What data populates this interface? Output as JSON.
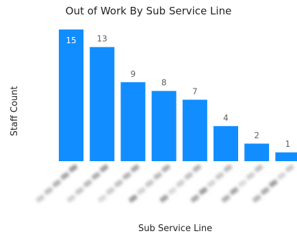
{
  "chart_data": {
    "type": "bar",
    "title": "Out of Work By Sub Service Line",
    "xlabel": "Sub Service Line",
    "ylabel": "Staff Count",
    "categories": [
      "",
      "",
      "",
      "",
      "",
      "",
      "",
      ""
    ],
    "values": [
      15,
      13,
      9,
      8,
      7,
      4,
      2,
      1
    ],
    "ylim": [
      0,
      15
    ],
    "grid": false,
    "bar_color": "#118DFF",
    "label_color_outside": "#605E5C",
    "label_color_inside": "#FFFFFF",
    "category_labels_blurred": true
  }
}
